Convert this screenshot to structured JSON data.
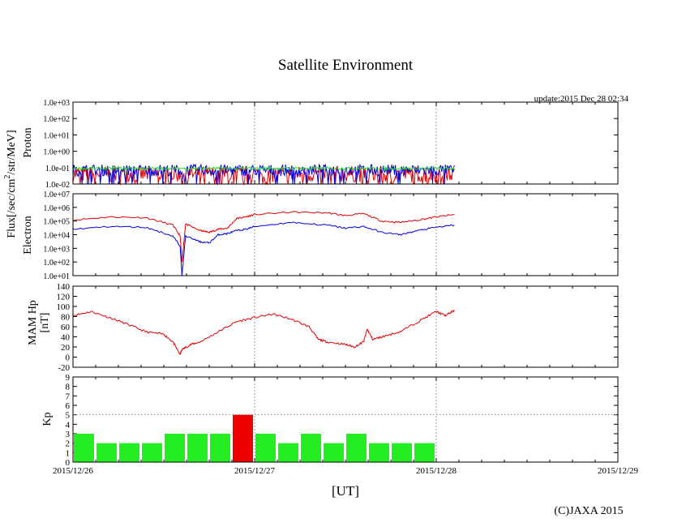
{
  "title": "Satellite Environment",
  "update": "update:2015 Dec 28 02:34",
  "xlabel": "[UT]",
  "copyright": "(C)JAXA 2015",
  "flux_label": {
    "prefix": "Flux[/sec/cm",
    "sup": "2",
    "suffix": "/str/MeV]"
  },
  "x_ticks": [
    "2015/12/26",
    "2015/12/27",
    "2015/12/28",
    "2015/12/29"
  ],
  "colors": {
    "red": "#e00000",
    "blue": "#0000dd",
    "green": "#22dd22",
    "kp_green": "#22ee22",
    "kp_red": "#ee0000",
    "grid": "#888888"
  },
  "chart_data": [
    {
      "id": "proton",
      "type": "line",
      "ylabel": "Proton",
      "yscale": "log",
      "ylim": [
        0.01,
        1000
      ],
      "y_ticks": [
        "1.0e-02",
        "1.0e-01",
        "1.0e+00",
        "1.0e+01",
        "1.0e+02",
        "1.0e+03"
      ],
      "x_range_days": [
        0,
        2.1
      ],
      "series": [
        {
          "color": "#e00000",
          "base": 0.04,
          "noise": 0.5
        },
        {
          "color": "#0000dd",
          "base": 0.07,
          "noise": 0.35
        },
        {
          "color": "#22dd22",
          "base": 0.09,
          "noise": 0.08
        }
      ]
    },
    {
      "id": "electron",
      "type": "line",
      "ylabel": "Electron",
      "yscale": "log",
      "ylim": [
        10,
        10000000
      ],
      "y_ticks": [
        "1.0e+01",
        "1.0e+02",
        "1.0e+03",
        "1.0e+04",
        "1.0e+05",
        "1.0e+06",
        "1.0e+07"
      ],
      "series": [
        {
          "color": "#e00000",
          "x": [
            0,
            0.2,
            0.4,
            0.55,
            0.59,
            0.6,
            0.62,
            0.7,
            0.75,
            0.8,
            0.85,
            0.9,
            0.95,
            1.0,
            1.2,
            1.4,
            1.5,
            1.6,
            1.7,
            1.8,
            1.9,
            2.0,
            2.1
          ],
          "y": [
            120000,
            200000,
            180000,
            50000,
            8000,
            100,
            60000,
            20000,
            15000,
            25000,
            30000,
            150000,
            200000,
            300000,
            450000,
            400000,
            250000,
            350000,
            100000,
            80000,
            120000,
            200000,
            300000
          ]
        },
        {
          "color": "#0000dd",
          "x": [
            0,
            0.2,
            0.4,
            0.55,
            0.59,
            0.6,
            0.62,
            0.7,
            0.75,
            0.8,
            0.85,
            0.9,
            0.95,
            1.0,
            1.2,
            1.4,
            1.5,
            1.6,
            1.7,
            1.8,
            1.9,
            2.0,
            2.1
          ],
          "y": [
            25000,
            40000,
            35000,
            8000,
            1500,
            10,
            8000,
            3000,
            2500,
            10000,
            12000,
            20000,
            25000,
            40000,
            80000,
            50000,
            30000,
            40000,
            15000,
            10000,
            20000,
            35000,
            50000
          ]
        }
      ]
    },
    {
      "id": "mam",
      "type": "line",
      "ylabel": "MAM Hp",
      "yunit": "[nT]",
      "ylim": [
        -20,
        140
      ],
      "y_ticks": [
        "-20",
        "0",
        "20",
        "40",
        "60",
        "80",
        "100",
        "120",
        "140"
      ],
      "series": [
        {
          "color": "#e00000",
          "x": [
            0,
            0.1,
            0.2,
            0.3,
            0.4,
            0.5,
            0.55,
            0.59,
            0.6,
            0.65,
            0.7,
            0.8,
            0.9,
            1.0,
            1.1,
            1.2,
            1.3,
            1.35,
            1.4,
            1.5,
            1.55,
            1.6,
            1.62,
            1.65,
            1.7,
            1.8,
            1.9,
            2.0,
            2.05,
            2.1
          ],
          "y": [
            82,
            90,
            78,
            65,
            50,
            45,
            30,
            5,
            15,
            25,
            30,
            50,
            70,
            78,
            85,
            75,
            60,
            35,
            30,
            25,
            20,
            30,
            55,
            35,
            40,
            50,
            70,
            90,
            82,
            92
          ]
        }
      ]
    },
    {
      "id": "kp",
      "type": "bar",
      "ylabel": "Kp",
      "ylim": [
        0,
        9
      ],
      "y_ticks": [
        "0",
        "1",
        "2",
        "3",
        "4",
        "5",
        "6",
        "7",
        "8",
        "9"
      ],
      "bar_width_days": 0.125,
      "values": [
        3,
        2,
        2,
        2,
        3,
        3,
        3,
        5,
        3,
        2,
        3,
        2,
        3,
        2,
        2,
        2
      ]
    }
  ]
}
